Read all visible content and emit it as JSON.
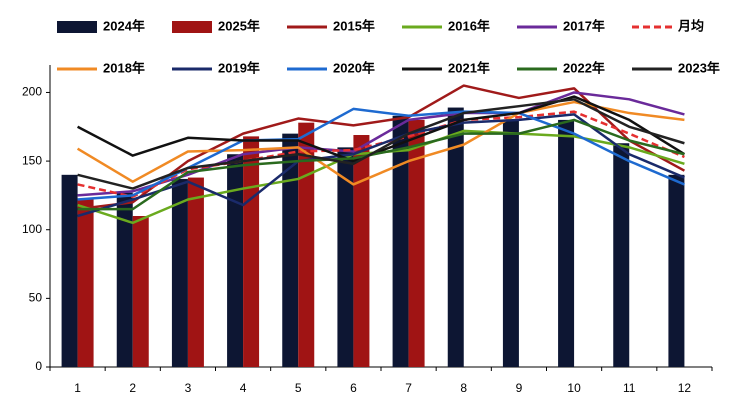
{
  "chart_data": {
    "type": "combo",
    "categories": [
      "1",
      "2",
      "3",
      "4",
      "5",
      "6",
      "7",
      "8",
      "9",
      "10",
      "11",
      "12"
    ],
    "ylim": [
      0,
      220
    ],
    "yticks": [
      0,
      50,
      100,
      150,
      200
    ],
    "series": [
      {
        "name": "2024年",
        "type": "bar",
        "color": "#0d1633",
        "values": [
          140,
          127,
          137,
          155,
          170,
          160,
          183,
          189,
          180,
          180,
          163,
          140
        ]
      },
      {
        "name": "2025年",
        "type": "bar",
        "color": "#a01414",
        "values": [
          122,
          110,
          138,
          168,
          178,
          169,
          180,
          null,
          null,
          null,
          null,
          null
        ]
      },
      {
        "name": "2015年",
        "type": "line",
        "color": "#a01a1a",
        "values": [
          115,
          120,
          150,
          170,
          181,
          176,
          182,
          205,
          196,
          203,
          165,
          143
        ]
      },
      {
        "name": "2016年",
        "type": "line",
        "color": "#6aaa1e",
        "values": [
          118,
          105,
          122,
          130,
          137,
          155,
          158,
          172,
          170,
          168,
          160,
          148
        ]
      },
      {
        "name": "2017年",
        "type": "line",
        "color": "#6a2a9a",
        "values": [
          125,
          128,
          140,
          155,
          160,
          157,
          180,
          185,
          185,
          200,
          195,
          184
        ]
      },
      {
        "name": "月均",
        "type": "line",
        "dashed": true,
        "color": "#e53030",
        "values": [
          133,
          124,
          144,
          150,
          157,
          158,
          168,
          180,
          182,
          186,
          170,
          153
        ]
      },
      {
        "name": "2018年",
        "type": "line",
        "color": "#f08a24",
        "values": [
          159,
          135,
          157,
          158,
          160,
          133,
          150,
          162,
          185,
          193,
          185,
          180
        ]
      },
      {
        "name": "2019年",
        "type": "line",
        "color": "#1a2a6a",
        "values": [
          110,
          122,
          135,
          118,
          150,
          155,
          170,
          178,
          180,
          184,
          155,
          138
        ]
      },
      {
        "name": "2020年",
        "type": "line",
        "color": "#1e6ad0",
        "values": [
          122,
          125,
          145,
          165,
          166,
          188,
          183,
          186,
          185,
          170,
          150,
          133
        ]
      },
      {
        "name": "2021年",
        "type": "line",
        "color": "#111111",
        "values": [
          175,
          154,
          167,
          165,
          165,
          150,
          165,
          180,
          185,
          197,
          180,
          155
        ]
      },
      {
        "name": "2022年",
        "type": "line",
        "color": "#2a6a1e",
        "values": [
          115,
          115,
          142,
          147,
          150,
          152,
          160,
          170,
          170,
          180,
          165,
          155
        ]
      },
      {
        "name": "2023年",
        "type": "line",
        "color": "#222222",
        "values": [
          140,
          130,
          145,
          150,
          155,
          148,
          170,
          185,
          190,
          195,
          175,
          163
        ]
      }
    ]
  }
}
